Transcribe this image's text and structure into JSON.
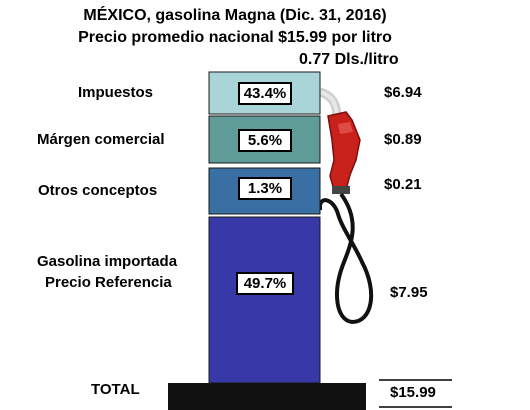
{
  "chart_data": {
    "type": "bar",
    "stacked": true,
    "title": "MÉXICO, gasolina Magna (Dic. 31, 2016)",
    "subtitle": "Precio promedio nacional $15.99 por litro",
    "subtitle2": "0.77 Dls./litro",
    "categories": [
      "Impuestos",
      "Márgen comercial",
      "Otros conceptos",
      "Gasolina importada\nPrecio Referencia"
    ],
    "category_labels": {
      "impuestos": "Impuestos",
      "margen": "Márgen comercial",
      "otros": "Otros conceptos",
      "gasolina_line1": "Gasolina importada",
      "gasolina_line2": "Precio Referencia"
    },
    "percentages": [
      "43.4%",
      "5.6%",
      "1.3%",
      "49.7%"
    ],
    "values": [
      6.94,
      0.89,
      0.21,
      7.95
    ],
    "value_labels": [
      "$6.94",
      "$0.89",
      "$0.21",
      "$7.95"
    ],
    "colors": [
      "#a9d4d8",
      "#5f9c97",
      "#3a6fa3",
      "#3838a8"
    ],
    "total_label": "TOTAL",
    "total_value": "$15.99"
  }
}
